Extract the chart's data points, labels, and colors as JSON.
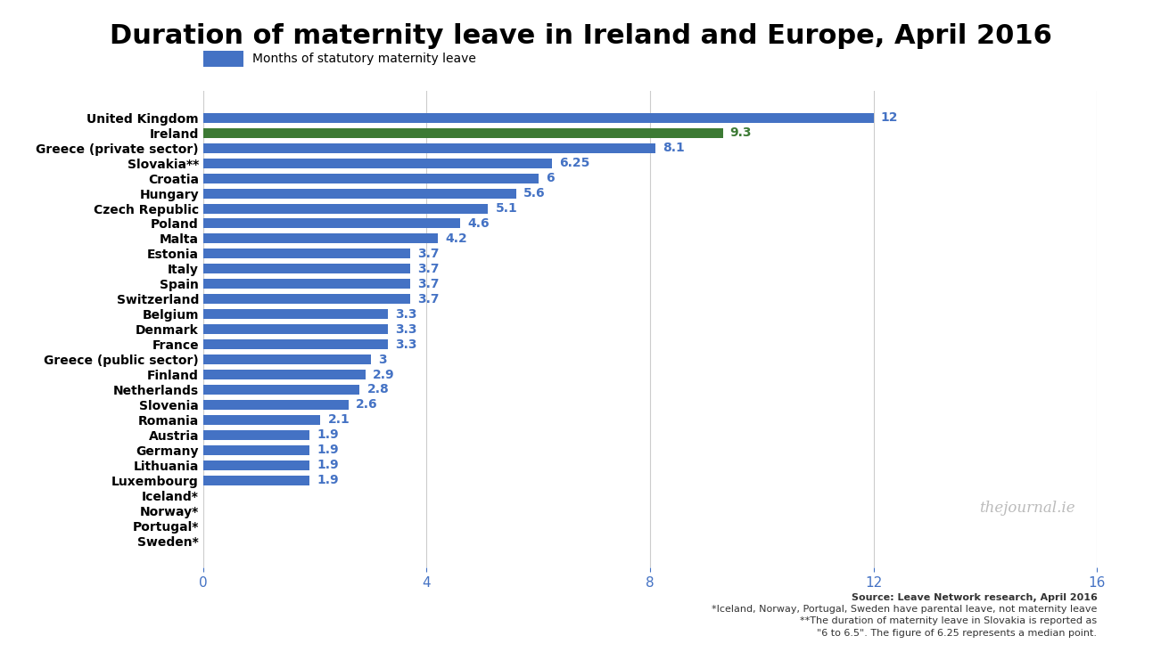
{
  "title": "Duration of maternity leave in Ireland and Europe, April 2016",
  "legend_label": "Months of statutory maternity leave",
  "countries": [
    "United Kingdom",
    "Ireland",
    "Greece (private sector)",
    "Slovakia**",
    "Croatia",
    "Hungary",
    "Czech Republic",
    "Poland",
    "Malta",
    "Estonia",
    "Italy",
    "Spain",
    "Switzerland",
    "Belgium",
    "Denmark",
    "France",
    "Greece (public sector)",
    "Finland",
    "Netherlands",
    "Slovenia",
    "Romania",
    "Austria",
    "Germany",
    "Lithuania",
    "Luxembourg",
    "Iceland*",
    "Norway*",
    "Portugal*",
    "Sweden*"
  ],
  "values": [
    12,
    9.3,
    8.1,
    6.25,
    6,
    5.6,
    5.1,
    4.6,
    4.2,
    3.7,
    3.7,
    3.7,
    3.7,
    3.3,
    3.3,
    3.3,
    3,
    2.9,
    2.8,
    2.6,
    2.1,
    1.9,
    1.9,
    1.9,
    1.9,
    0,
    0,
    0,
    0
  ],
  "bar_colors": [
    "#4472c4",
    "#3c7a34",
    "#4472c4",
    "#4472c4",
    "#4472c4",
    "#4472c4",
    "#4472c4",
    "#4472c4",
    "#4472c4",
    "#4472c4",
    "#4472c4",
    "#4472c4",
    "#4472c4",
    "#4472c4",
    "#4472c4",
    "#4472c4",
    "#4472c4",
    "#4472c4",
    "#4472c4",
    "#4472c4",
    "#4472c4",
    "#4472c4",
    "#4472c4",
    "#4472c4",
    "#4472c4",
    "#4472c4",
    "#4472c4",
    "#4472c4",
    "#4472c4"
  ],
  "label_colors": [
    "#4472c4",
    "#3c7a34",
    "#4472c4",
    "#4472c4",
    "#4472c4",
    "#4472c4",
    "#4472c4",
    "#4472c4",
    "#4472c4",
    "#4472c4",
    "#4472c4",
    "#4472c4",
    "#4472c4",
    "#4472c4",
    "#4472c4",
    "#4472c4",
    "#4472c4",
    "#4472c4",
    "#4472c4",
    "#4472c4",
    "#4472c4",
    "#4472c4",
    "#4472c4",
    "#4472c4",
    "#4472c4",
    "#4472c4",
    "#4472c4",
    "#4472c4",
    "#4472c4"
  ],
  "xlim": [
    0,
    16
  ],
  "xticks": [
    0,
    4,
    8,
    12,
    16
  ],
  "source_line1": "Source: Leave Network research, April 2016",
  "source_line2": "*Iceland, Norway, Portugal, Sweden have parental leave, not maternity leave",
  "source_line3": "**The duration of maternity leave in Slovakia is reported as",
  "source_line4": "\"6 to 6.5\". The figure of 6.25 represents a median point.",
  "watermark": "thejournal.ie",
  "background_color": "#ffffff",
  "title_fontsize": 22,
  "bar_label_fontsize": 10,
  "ytick_fontsize": 10,
  "xtick_fontsize": 11,
  "legend_fontsize": 10
}
